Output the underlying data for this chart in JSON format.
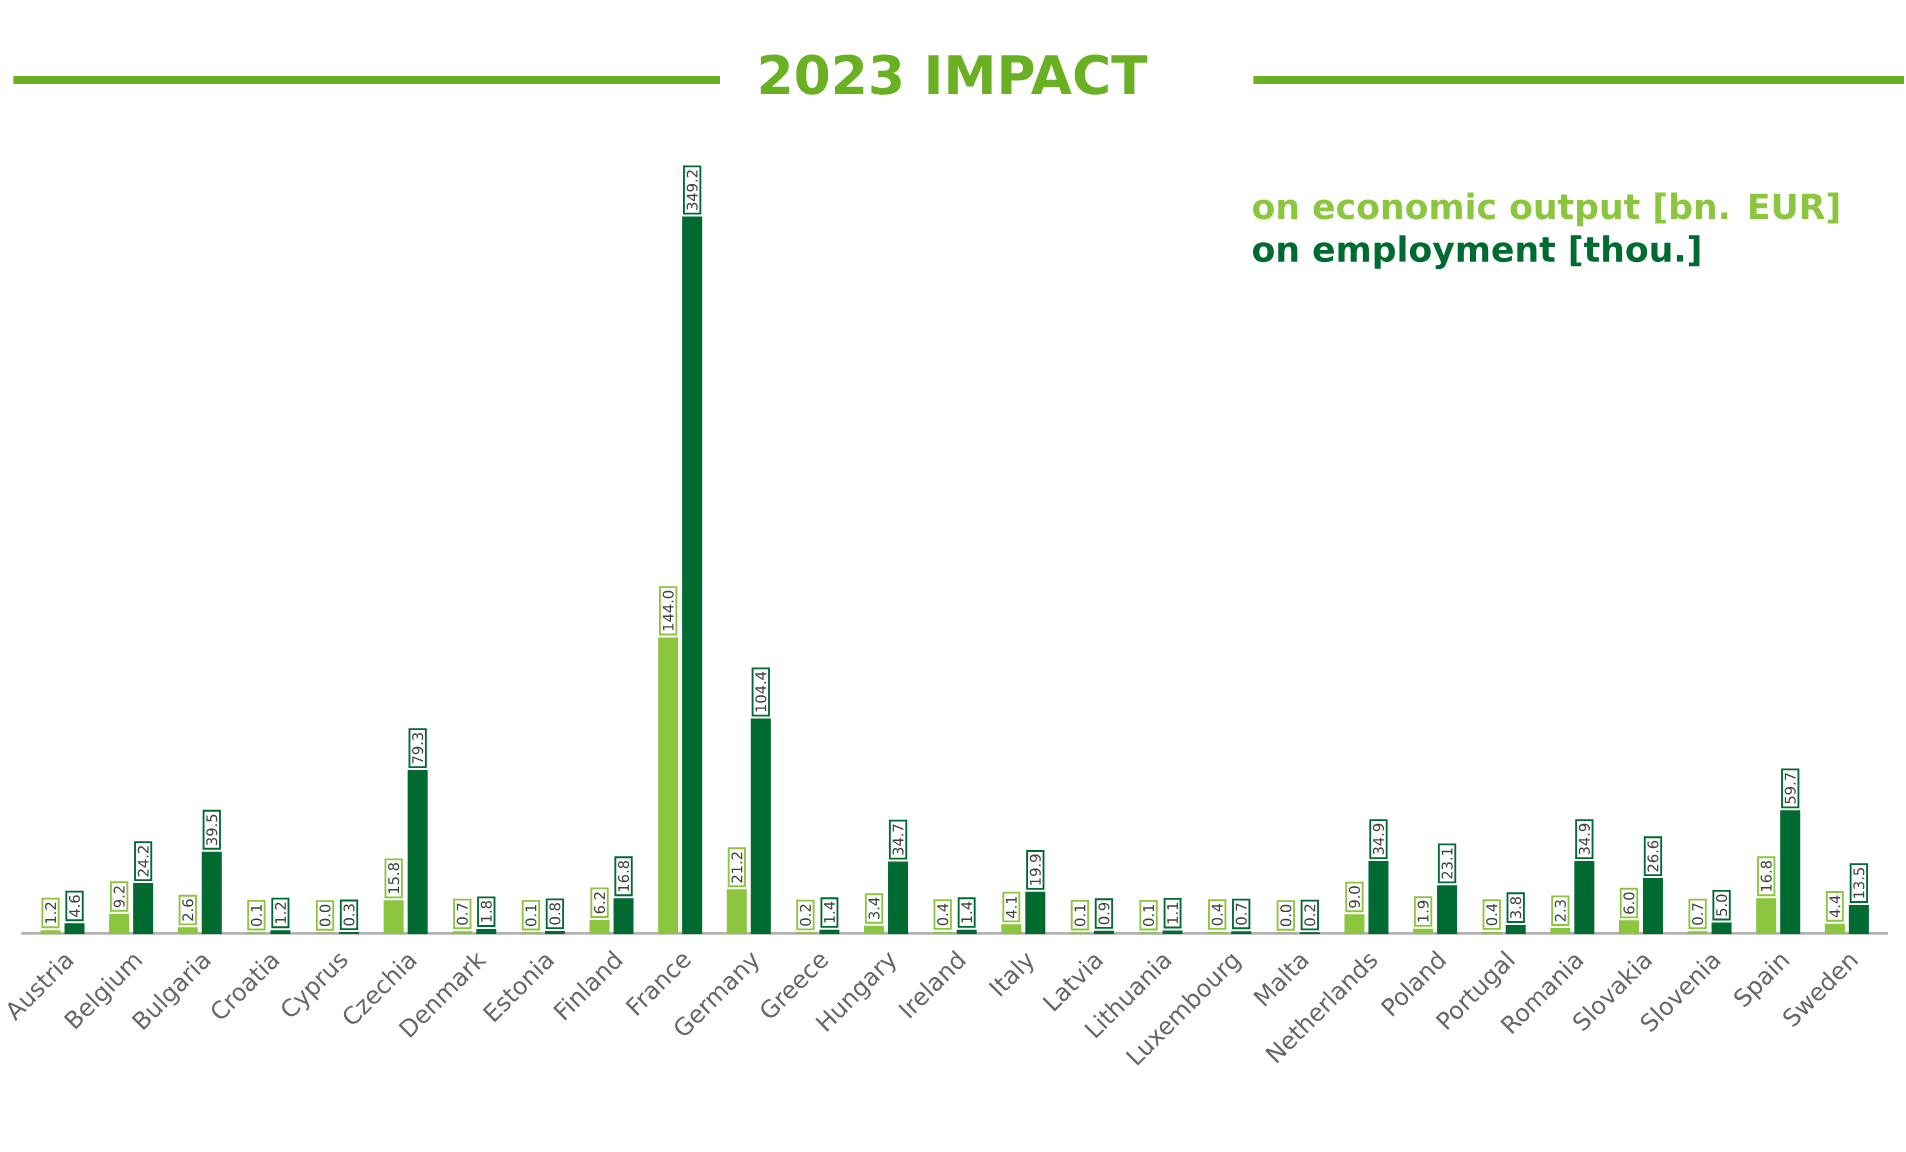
{
  "chart_data": {
    "type": "bar",
    "title": "2023 IMPACT",
    "legend": "top right",
    "categories": [
      "Austria",
      "Belgium",
      "Bulgaria",
      "Croatia",
      "Cyprus",
      "Czechia",
      "Denmark",
      "Estonia",
      "Finland",
      "France",
      "Germany",
      "Greece",
      "Hungary",
      "Ireland",
      "Italy",
      "Latvia",
      "Lithuania",
      "Luxembourg",
      "Malta",
      "Netherlands",
      "Poland",
      "Portugal",
      "Romania",
      "Slovakia",
      "Slovenia",
      "Spain",
      "Sweden"
    ],
    "series": [
      {
        "name": "on economic output [bn. EUR]",
        "color": "#8cc63e",
        "values": [
          1.2,
          9.2,
          2.6,
          0.1,
          0.0,
          15.8,
          0.7,
          0.1,
          6.2,
          144.0,
          21.2,
          0.2,
          3.4,
          0.4,
          4.1,
          0.1,
          0.1,
          0.4,
          0.0,
          9.0,
          1.9,
          0.4,
          2.3,
          6.0,
          0.7,
          16.8,
          4.4
        ],
        "value_labels": [
          "1.2",
          "9.2",
          "2.6",
          "0.1",
          "0.0",
          "15.8",
          "0.7",
          "0.1",
          "6.2",
          "144.0",
          "21.2",
          "0.2",
          "3.4",
          "0.4",
          "4.1",
          "0.1",
          "0.1",
          "0.4",
          "0.0",
          "9.0",
          "1.9",
          "0.4",
          "2.3",
          "6.0",
          "0.7",
          "16.8",
          "4.4"
        ]
      },
      {
        "name": "on employment [thou.]",
        "color": "#006b30",
        "values": [
          4.6,
          24.2,
          39.5,
          1.2,
          0.3,
          79.3,
          1.8,
          0.8,
          16.8,
          349.2,
          104.4,
          1.4,
          34.7,
          1.4,
          19.9,
          0.9,
          1.1,
          0.7,
          0.2,
          34.9,
          23.1,
          3.8,
          34.9,
          26.6,
          5.0,
          59.7,
          13.5
        ],
        "value_labels": [
          "4.6",
          "24.2",
          "39.5",
          "1.2",
          "0.3",
          "79.3",
          "1.8",
          "0.8",
          "16.8",
          "349.2",
          "104.4",
          "1.4",
          "34.7",
          "1.4",
          "19.9",
          "0.9",
          "1.1",
          "0.7",
          "0.2",
          "34.9",
          "23.1",
          "3.8",
          "34.9",
          "26.6",
          "5.0",
          "59.7",
          "13.5"
        ]
      }
    ]
  }
}
